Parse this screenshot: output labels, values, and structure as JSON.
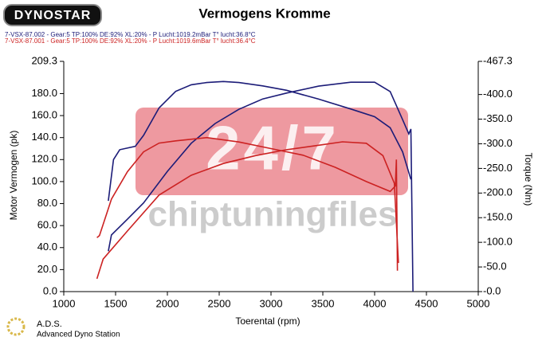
{
  "chart_data": {
    "type": "line",
    "logo": "DYNOSTAR",
    "title": "Vermogens Kromme",
    "watermark": {
      "big": "24/7",
      "small": "chiptuningfiles"
    },
    "footer": {
      "title": "A.D.S.",
      "subtitle": "Advanced Dyno Station"
    },
    "x_label": "Toerental (rpm)",
    "y_label": "Motor Vermogen (pk)",
    "y2_label": "Torque (Nm)",
    "xlim": [
      1000,
      5000
    ],
    "xticks": [
      1000,
      1500,
      2000,
      2500,
      3000,
      3500,
      4000,
      4500,
      5000
    ],
    "ylim": [
      0,
      209.3
    ],
    "yticks": [
      {
        "value": 0,
        "label": "0.0"
      },
      {
        "value": 20,
        "label": "20.0"
      },
      {
        "value": 40,
        "label": "40.0"
      },
      {
        "value": 60,
        "label": "60.0"
      },
      {
        "value": 80,
        "label": "80.0"
      },
      {
        "value": 100,
        "label": "100.0"
      },
      {
        "value": 120,
        "label": "120.0"
      },
      {
        "value": 140,
        "label": "140.0"
      },
      {
        "value": 160,
        "label": "160.0"
      },
      {
        "value": 180,
        "label": "180.0"
      },
      209.3
    ],
    "y2lim": [
      0,
      467.3
    ],
    "y2ticks": [
      {
        "value": 0,
        "label": "-0.0"
      },
      {
        "value": 50,
        "label": "-50.0"
      },
      {
        "value": 100,
        "label": "-100.0"
      },
      {
        "value": 150,
        "label": "-150.0"
      },
      {
        "value": 200,
        "label": "-200.0"
      },
      {
        "value": 250,
        "label": "-250.0"
      },
      {
        "value": 300,
        "label": "-300.0"
      },
      {
        "value": 350,
        "label": "-350.0"
      },
      {
        "value": 400,
        "label": "-400.0"
      },
      {
        "value": 467.3,
        "label": "-467.3"
      }
    ],
    "series": [
      {
        "name": "7-VSX-87.002 - Gear:5 TP:100% DE:92% XL:20%   - P Lucht:1019.2mBar T° lucht:36.8°C",
        "color": "#1c1c78",
        "power": {
          "x": [
            1430,
            1480,
            1540,
            1690,
            1770,
            1920,
            2080,
            2230,
            2380,
            2540,
            2690,
            2920,
            3150,
            3460,
            3770,
            4000,
            4150,
            4270,
            4350
          ],
          "values": [
            82.5,
            120,
            129,
            132,
            142,
            167,
            182,
            188,
            190,
            191,
            190,
            187,
            183,
            175,
            166,
            159,
            149,
            127,
            102
          ]
        },
        "torque": {
          "axis": "y2",
          "x": [
            1430,
            1460,
            1615,
            1770,
            2000,
            2230,
            2460,
            2690,
            2920,
            3150,
            3460,
            3770,
            4000,
            4150,
            4270,
            4330,
            4350,
            4370
          ],
          "values": [
            82,
            115,
            147,
            180,
            244,
            301,
            341,
            370,
            391,
            403,
            417,
            425,
            425,
            406,
            349,
            320,
            330,
            0
          ]
        }
      },
      {
        "name": "7-VSX-87.001 - Gear:5 TP:100% DE:92% XL:20%   - P Lucht:1019.6mBar T° lucht:36.4°C",
        "color": "#cc2222",
        "power": {
          "x": [
            1320,
            1345,
            1460,
            1615,
            1770,
            1920,
            2080,
            2380,
            2690,
            3000,
            3310,
            3620,
            3920,
            4150,
            4200,
            4210,
            4220
          ],
          "values": [
            49,
            51,
            84,
            109,
            127,
            135,
            137,
            140,
            136,
            130,
            124,
            113,
            100,
            91,
            96,
            120,
            19
          ]
        },
        "torque": {
          "axis": "y2",
          "x": [
            1320,
            1380,
            1615,
            1920,
            2230,
            2540,
            2850,
            3150,
            3460,
            3690,
            3920,
            4080,
            4190,
            4230
          ],
          "values": [
            26,
            66,
            123,
            196,
            236,
            260,
            276,
            288,
            297,
            304,
            301,
            276,
            220,
            58
          ]
        }
      }
    ]
  }
}
